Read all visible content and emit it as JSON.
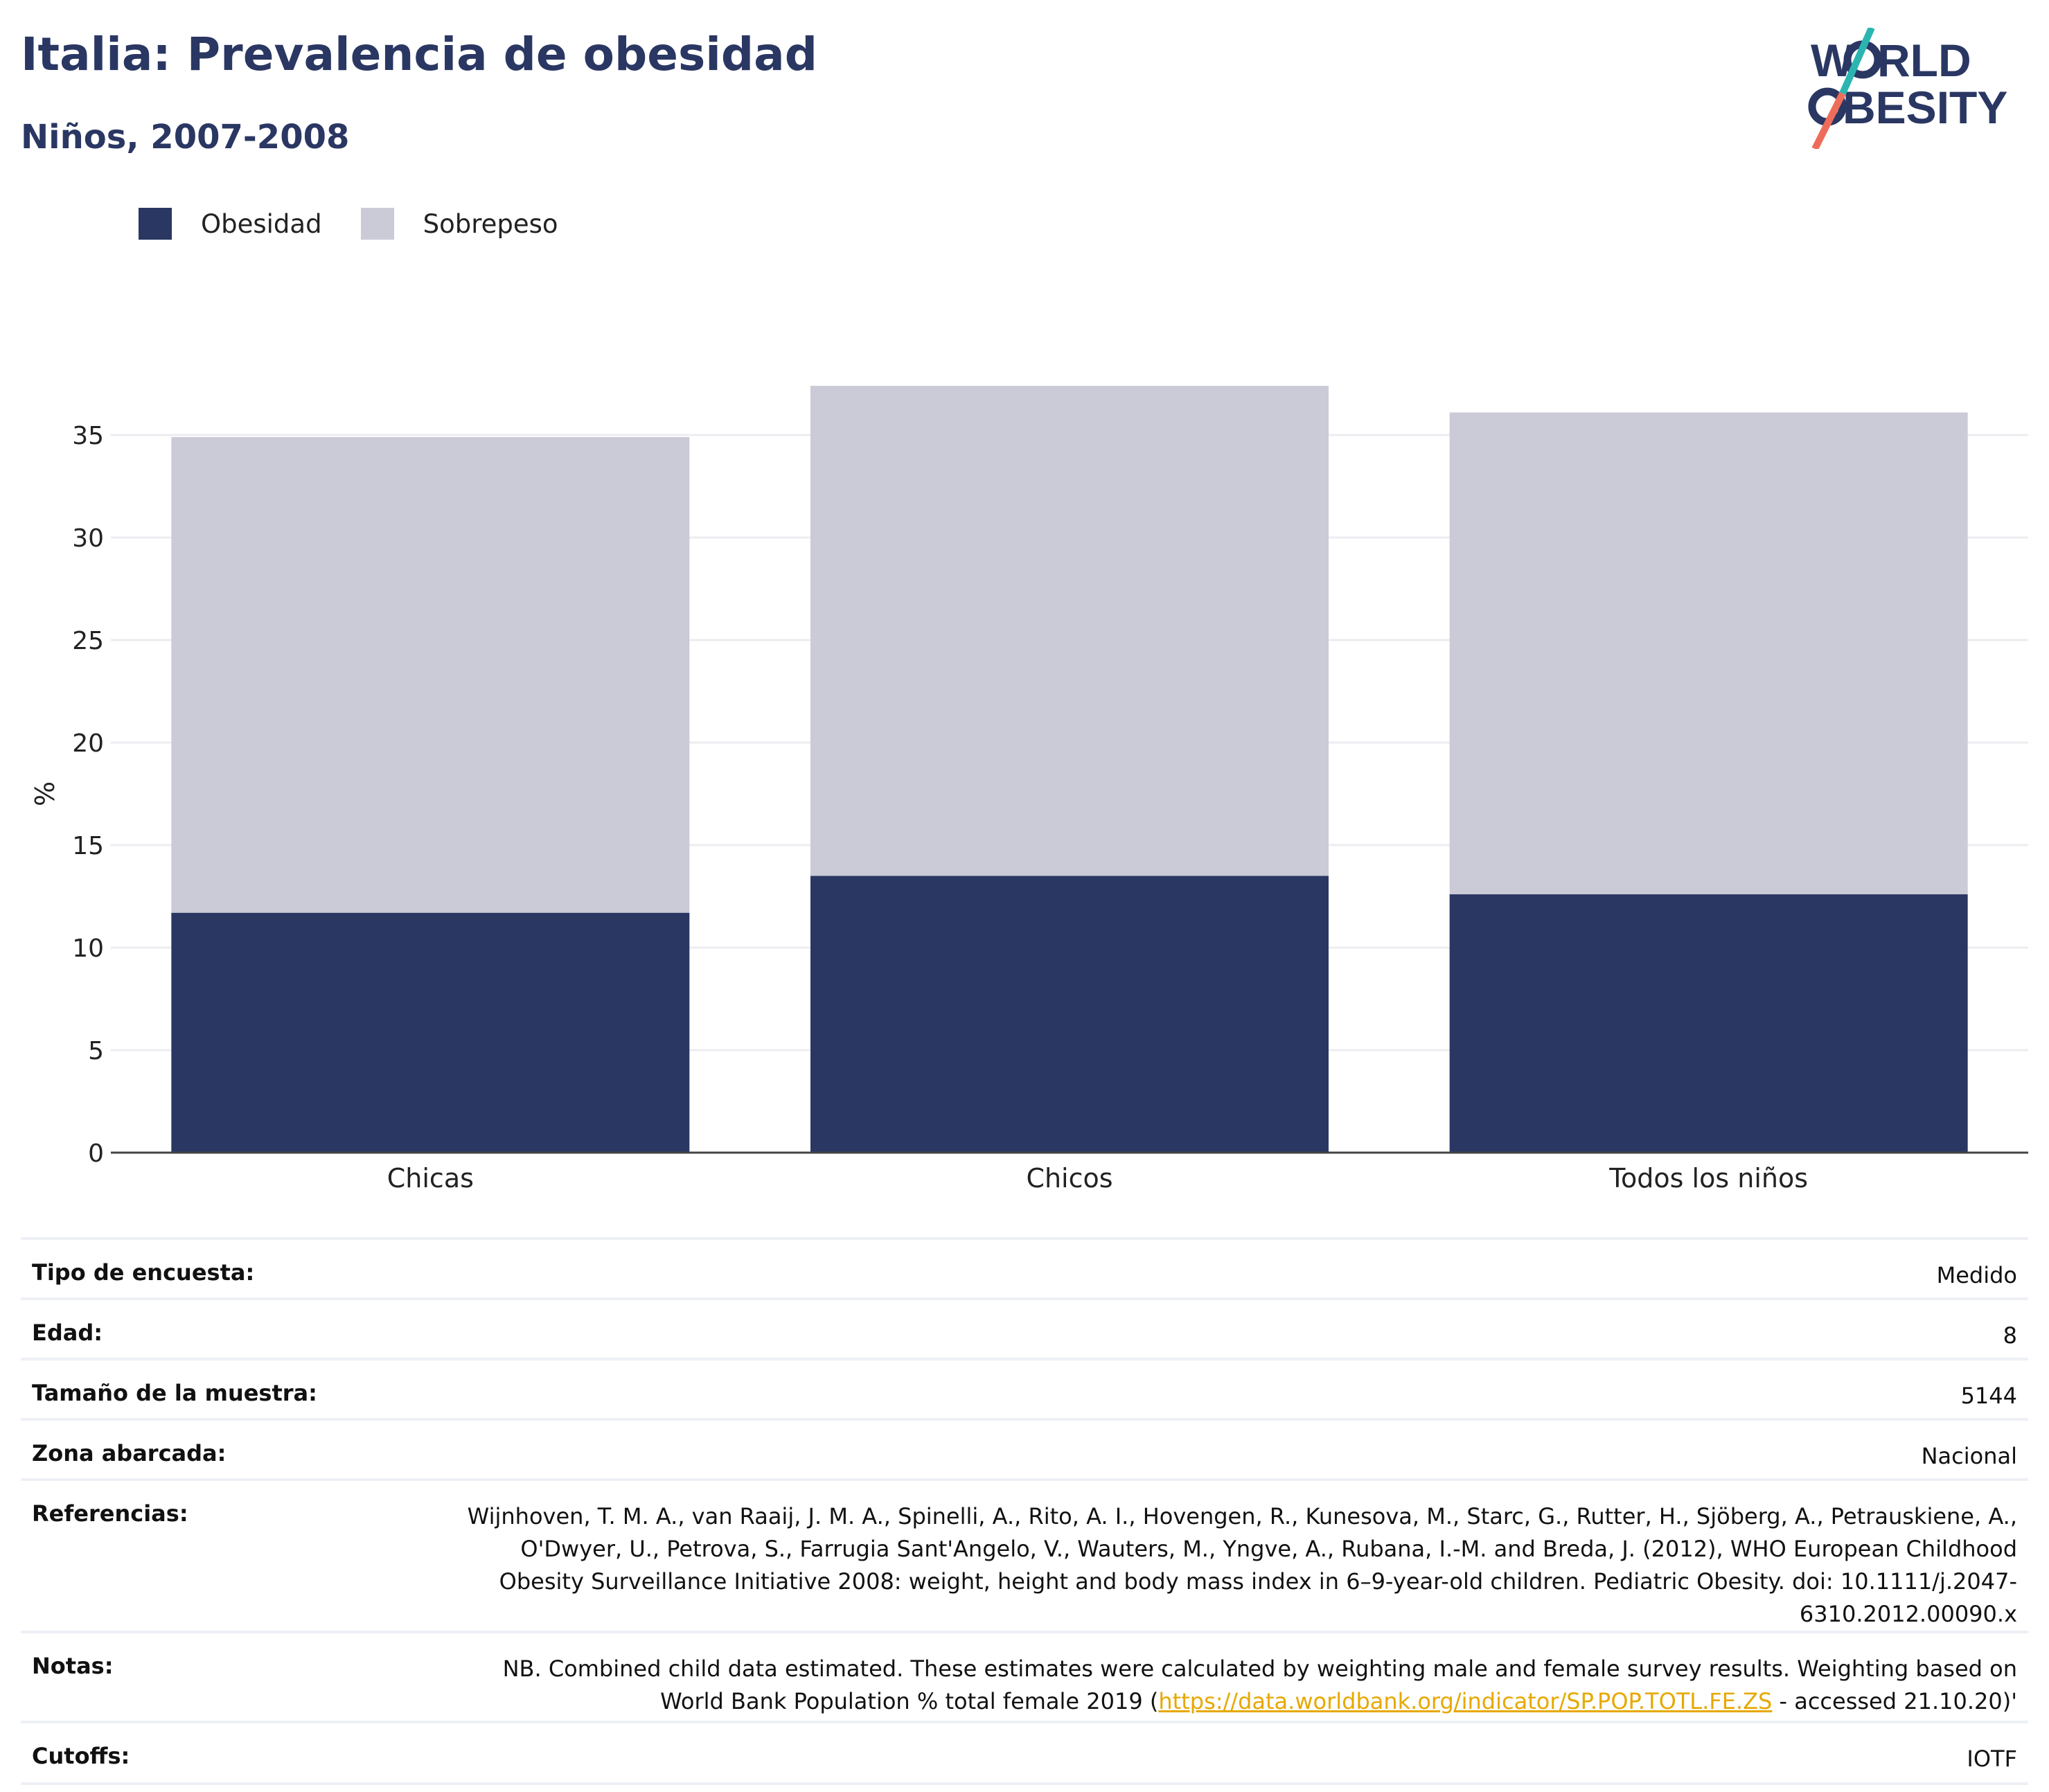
{
  "header": {
    "title": "Italia: Prevalencia de obesidad",
    "subtitle": "Niños, 2007-2008"
  },
  "logo": {
    "line1": "WORLD",
    "line2": "OBESITY"
  },
  "colors": {
    "obesity": "#2a3763",
    "overweight": "#cacbd7",
    "accent_teal": "#2bb5b0",
    "accent_coral": "#ee6c5a",
    "link": "#e6a800"
  },
  "chart_data": {
    "type": "bar",
    "stacked": true,
    "categories": [
      "Chicas",
      "Chicos",
      "Todos los niños"
    ],
    "series": [
      {
        "name": "Obesidad",
        "color": "#2a3763",
        "values": [
          11.7,
          13.5,
          12.6
        ]
      },
      {
        "name": "Sobrepeso",
        "color": "#cacbd7",
        "values": [
          23.2,
          23.9,
          23.5
        ]
      }
    ],
    "ylabel": "%",
    "ylim": [
      0,
      38
    ],
    "yticks": [
      0,
      5,
      10,
      15,
      20,
      25,
      30,
      35
    ],
    "grid": true,
    "legend_position": "top-left"
  },
  "info": {
    "survey_type": {
      "label": "Tipo de encuesta:",
      "value": "Medido"
    },
    "age": {
      "label": "Edad:",
      "value": "8"
    },
    "sample": {
      "label": "Tamaño de la muestra:",
      "value": "5144"
    },
    "area": {
      "label": "Zona abarcada:",
      "value": "Nacional"
    },
    "references": {
      "label": "Referencias:",
      "value": "Wijnhoven, T. M. A., van Raaij, J. M. A., Spinelli, A., Rito, A. I., Hovengen, R., Kunesova, M., Starc, G., Rutter, H., Sjöberg, A., Petrauskiene, A., O'Dwyer, U., Petrova, S., Farrugia Sant'Angelo, V., Wauters, M., Yngve, A., Rubana, I.-M. and Breda, J. (2012), WHO European Childhood Obesity Surveillance Initiative 2008: weight, height and body mass index in 6–9-year-old children. Pediatric Obesity. doi: 10.1111/j.2047-6310.2012.00090.x"
    },
    "notes": {
      "label": "Notas:",
      "before": "NB. Combined child data estimated. These estimates were calculated by weighting male and female survey results. Weighting based on World Bank Population % total female 2019 (",
      "link": "https://data.worldbank.org/indicator/SP.POP.TOTL.FE.ZS",
      "after": " - accessed 21.10.20)'"
    },
    "cutoffs": {
      "label": "Cutoffs:",
      "value": "IOTF"
    }
  }
}
